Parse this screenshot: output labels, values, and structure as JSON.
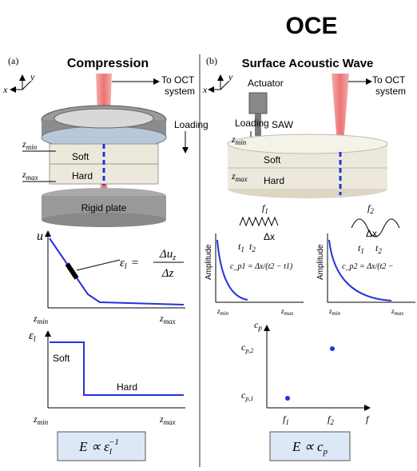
{
  "title": "OCE",
  "panel_a": {
    "label": "(a)",
    "title": "Compression",
    "axis_x": "x",
    "axis_y": "y",
    "oct": [
      "To OCT",
      "system"
    ],
    "loading": "Loading",
    "zmin": {
      "base": "z",
      "sub": "min"
    },
    "zmax": {
      "base": "z",
      "sub": "max"
    },
    "soft": "Soft",
    "hard": "Hard",
    "plate": "Rigid plate",
    "plot1": {
      "ylabel": "u",
      "eq_lhs": {
        "base": "ε",
        "sub": "l"
      },
      "eq_num": {
        "base": "Δu",
        "sub": "z"
      },
      "eq_den": "Δz",
      "eq_sign": "="
    },
    "plot2": {
      "ylabel": {
        "base": "ε",
        "sub": "l"
      },
      "soft": "Soft",
      "hard": "Hard"
    },
    "formula": {
      "main": "E ∝ ε",
      "sub": "l",
      "sup": "−1"
    }
  },
  "panel_b": {
    "label": "(b)",
    "title": "Surface Acoustic Wave",
    "axis_x": "x",
    "axis_y": "y",
    "actuator": "Actuator",
    "loading": "Loading",
    "saw": "SAW",
    "oct": [
      "To OCT",
      "system"
    ],
    "zmin": {
      "base": "z",
      "sub": "min"
    },
    "zmax": {
      "base": "z",
      "sub": "max"
    },
    "soft": "Soft",
    "hard": "Hard",
    "f1": {
      "base": "f",
      "sub": "1"
    },
    "f2": {
      "base": "f",
      "sub": "2"
    },
    "dx": "Δx",
    "t1": {
      "base": "t",
      "sub": "1"
    },
    "t2": {
      "base": "t",
      "sub": "2"
    },
    "amplitude": "Amplitude",
    "cp1_eq": "c_p1 = Δx/(t2 − t1)",
    "cp2_eq": "c_p2 = Δx/(t2 −",
    "cp_axis": {
      "base": "c",
      "sub": "p"
    },
    "cp2": {
      "base": "c",
      "sub": "p,2"
    },
    "cp1": {
      "base": "c",
      "sub": "p,1"
    },
    "f_axis": "f",
    "formula": {
      "main": "E ∝ c",
      "sub": "p"
    }
  }
}
